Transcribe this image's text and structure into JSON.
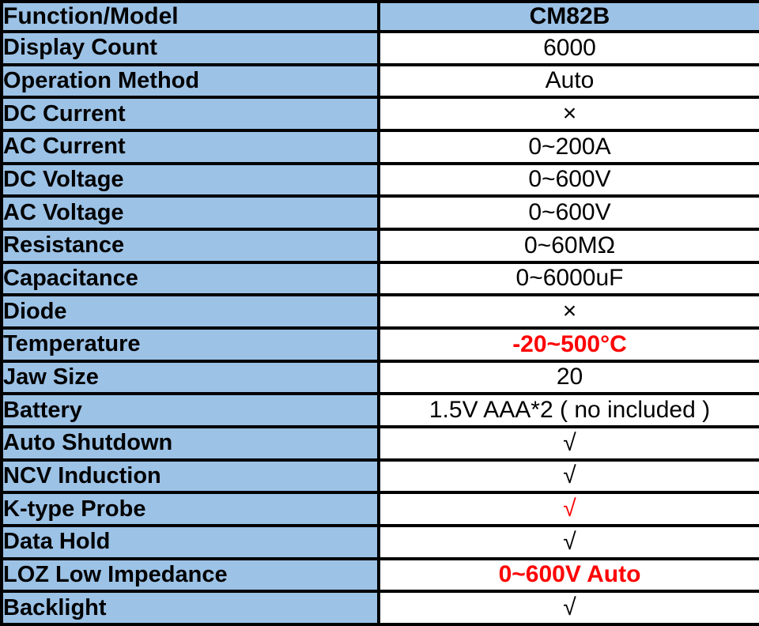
{
  "table": {
    "header": {
      "function_model_label": "Function/Model",
      "model_name": "CM82B"
    },
    "rows": [
      {
        "label": "Display Count",
        "value": "6000",
        "style": "normal"
      },
      {
        "label": "Operation Method",
        "value": "Auto",
        "style": "normal"
      },
      {
        "label": "DC Current",
        "value": "×",
        "style": "normal"
      },
      {
        "label": "AC Current",
        "value": "0~200A",
        "style": "normal"
      },
      {
        "label": "DC Voltage",
        "value": "0~600V",
        "style": "normal"
      },
      {
        "label": "AC Voltage",
        "value": "0~600V",
        "style": "normal"
      },
      {
        "label": "Resistance",
        "value": "0~60MΩ",
        "style": "normal"
      },
      {
        "label": "Capacitance",
        "value": "0~6000uF",
        "style": "normal"
      },
      {
        "label": "Diode",
        "value": "×",
        "style": "normal"
      },
      {
        "label": "Temperature",
        "value": "-20~500°C",
        "style": "red-bold"
      },
      {
        "label": "Jaw Size",
        "value": "20",
        "style": "normal"
      },
      {
        "label": "Battery",
        "value": "1.5V AAA*2 ( no included )",
        "style": "normal"
      },
      {
        "label": "Auto Shutdown",
        "value": "√",
        "style": "normal"
      },
      {
        "label": "NCV Induction",
        "value": "√",
        "style": "normal"
      },
      {
        "label": "K-type Probe",
        "value": "√",
        "style": "red"
      },
      {
        "label": "Data Hold",
        "value": "√",
        "style": "normal"
      },
      {
        "label": "LOZ Low Impedance",
        "value": "0~600V Auto",
        "style": "red-bold"
      },
      {
        "label": "Backlight",
        "value": "√",
        "style": "normal"
      }
    ],
    "colors": {
      "cell_blue": "#9CC2E6",
      "cell_white": "#FFFFFF",
      "border": "#000000",
      "text": "#000000",
      "highlight_red": "#FF0000"
    }
  }
}
